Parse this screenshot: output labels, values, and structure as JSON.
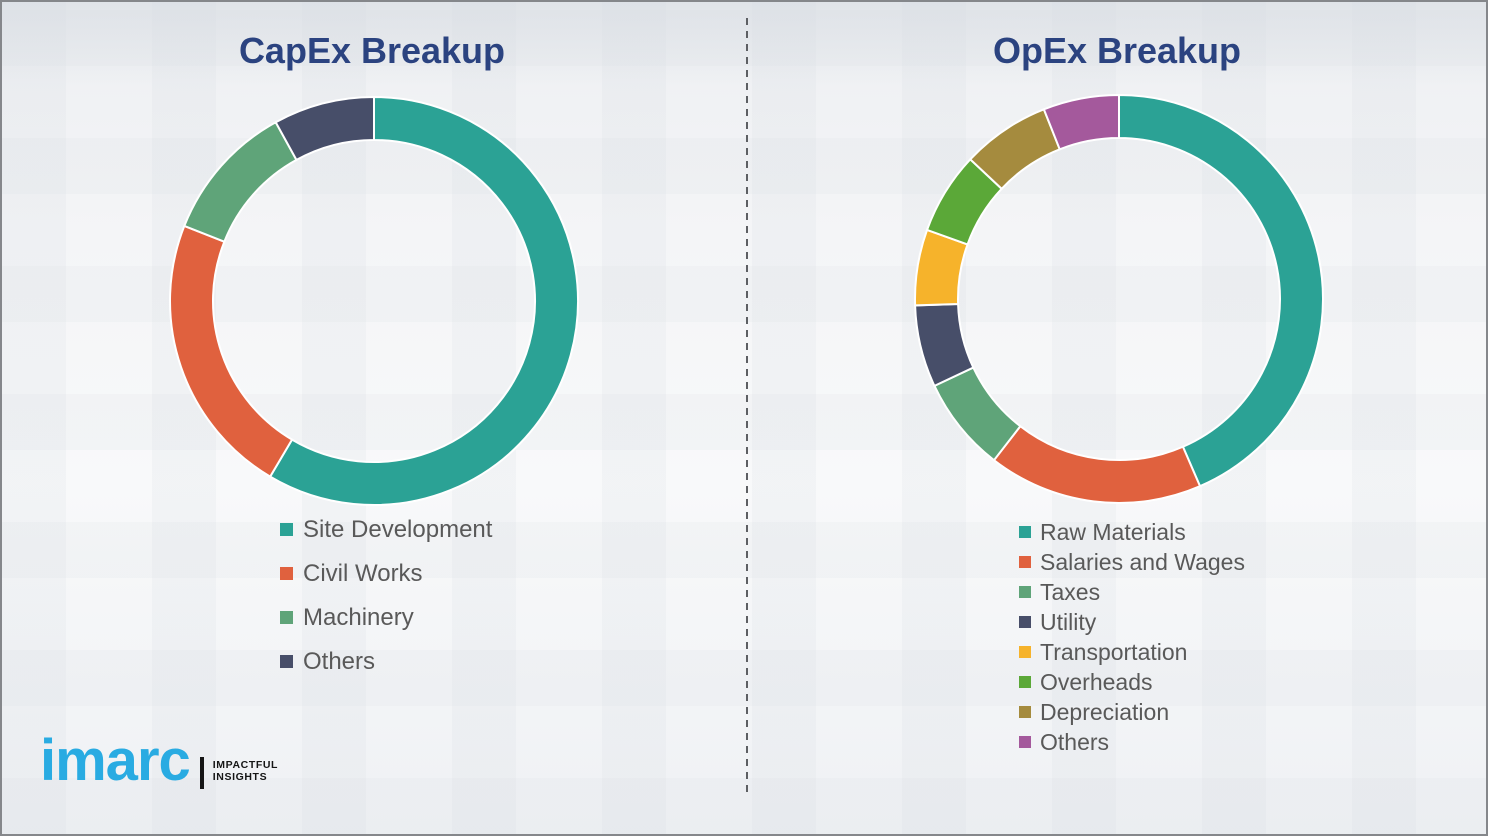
{
  "page": {
    "border_color": "#85878b",
    "background_base": "#f2f4f6",
    "divider_color": "#5d5f63"
  },
  "chart_data": [
    {
      "type": "pie",
      "subtype": "donut",
      "title": "CapEx Breakup",
      "title_color": "#2b4380",
      "labels": [
        "Site Development",
        "Civil Works",
        "Machinery",
        "Others"
      ],
      "values": [
        58.5,
        22.5,
        11,
        8
      ],
      "colors": [
        "#2ba295",
        "#e0613e",
        "#5fa479",
        "#474e69"
      ],
      "unit": "percent (estimated from arc angles, no data labels shown)",
      "start_angle_deg": 0,
      "direction": "clockwise",
      "legend_position": "below-left",
      "legend_text_color": "#595959"
    },
    {
      "type": "pie",
      "subtype": "donut",
      "title": "OpEx Breakup",
      "title_color": "#2b4380",
      "labels": [
        "Raw Materials",
        "Salaries and Wages",
        "Taxes",
        "Utility",
        "Transportation",
        "Overheads",
        "Depreciation",
        "Others"
      ],
      "values": [
        43.5,
        17,
        7.5,
        6.5,
        6,
        6.5,
        7,
        6
      ],
      "colors": [
        "#2ba295",
        "#e0613e",
        "#5fa479",
        "#474e69",
        "#f6b32b",
        "#5ba838",
        "#a58b3e",
        "#a4599c"
      ],
      "unit": "percent (estimated from arc angles, no data labels shown)",
      "start_angle_deg": 0,
      "direction": "clockwise",
      "legend_position": "below-left",
      "legend_text_color": "#595959"
    }
  ],
  "logo": {
    "brand": "imarc",
    "brand_color": "#29abe2",
    "tagline_line1": "IMPACTFUL",
    "tagline_line2": "INSIGHTS",
    "tagline_color": "#151515"
  }
}
